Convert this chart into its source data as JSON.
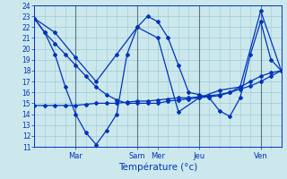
{
  "xlabel": "Température (°c)",
  "bg_color": "#cce8ec",
  "line_color": "#0033bb",
  "grid_color": "#99ccd4",
  "ylim": [
    11,
    24
  ],
  "yticks": [
    11,
    12,
    13,
    14,
    15,
    16,
    17,
    18,
    19,
    20,
    21,
    22,
    23,
    24
  ],
  "xlim": [
    0,
    96
  ],
  "vlines": [
    16,
    40,
    64,
    88
  ],
  "xtick_positions": [
    16,
    40,
    48,
    64,
    88
  ],
  "xtick_labels": [
    "Mar",
    "Sam",
    "Mer",
    "Jeu",
    "Ven"
  ],
  "series": [
    {
      "x": [
        0,
        4,
        8,
        12,
        16,
        20,
        24,
        28,
        32,
        36,
        40,
        44,
        48,
        52,
        56,
        60,
        64,
        68,
        72,
        76,
        80,
        84,
        88,
        92,
        96
      ],
      "y": [
        22.8,
        21.5,
        20.5,
        19.5,
        18.5,
        17.5,
        16.5,
        15.8,
        15.3,
        15.0,
        15.0,
        15.0,
        15.0,
        15.2,
        15.3,
        15.4,
        15.5,
        15.6,
        15.7,
        16.0,
        16.5,
        17.0,
        17.5,
        17.8,
        18.0
      ]
    },
    {
      "x": [
        0,
        4,
        8,
        12,
        16,
        20,
        24,
        28,
        32,
        36,
        40,
        44,
        48,
        52,
        56,
        60,
        64,
        68,
        72,
        76,
        80,
        84,
        88,
        92,
        96
      ],
      "y": [
        22.8,
        21.5,
        19.5,
        16.5,
        14.0,
        12.3,
        11.2,
        12.5,
        14.0,
        19.5,
        22.0,
        23.0,
        22.5,
        21.0,
        18.5,
        16.0,
        15.8,
        15.5,
        14.3,
        13.8,
        15.5,
        19.5,
        22.5,
        19.0,
        18.0
      ]
    },
    {
      "x": [
        0,
        8,
        16,
        24,
        32,
        40,
        48,
        56,
        64,
        72,
        80,
        88,
        96
      ],
      "y": [
        22.8,
        21.5,
        19.2,
        17.0,
        19.5,
        22.0,
        21.0,
        14.2,
        15.5,
        16.2,
        16.5,
        23.5,
        18.0
      ]
    },
    {
      "x": [
        0,
        4,
        8,
        12,
        16,
        20,
        24,
        28,
        32,
        36,
        40,
        44,
        48,
        52,
        56,
        60,
        64,
        68,
        72,
        76,
        80,
        84,
        88,
        92,
        96
      ],
      "y": [
        14.8,
        14.8,
        14.8,
        14.8,
        14.8,
        14.9,
        15.0,
        15.0,
        15.0,
        15.1,
        15.2,
        15.2,
        15.3,
        15.4,
        15.5,
        15.5,
        15.6,
        15.7,
        15.8,
        16.0,
        16.3,
        16.6,
        17.0,
        17.5,
        18.0
      ]
    }
  ]
}
